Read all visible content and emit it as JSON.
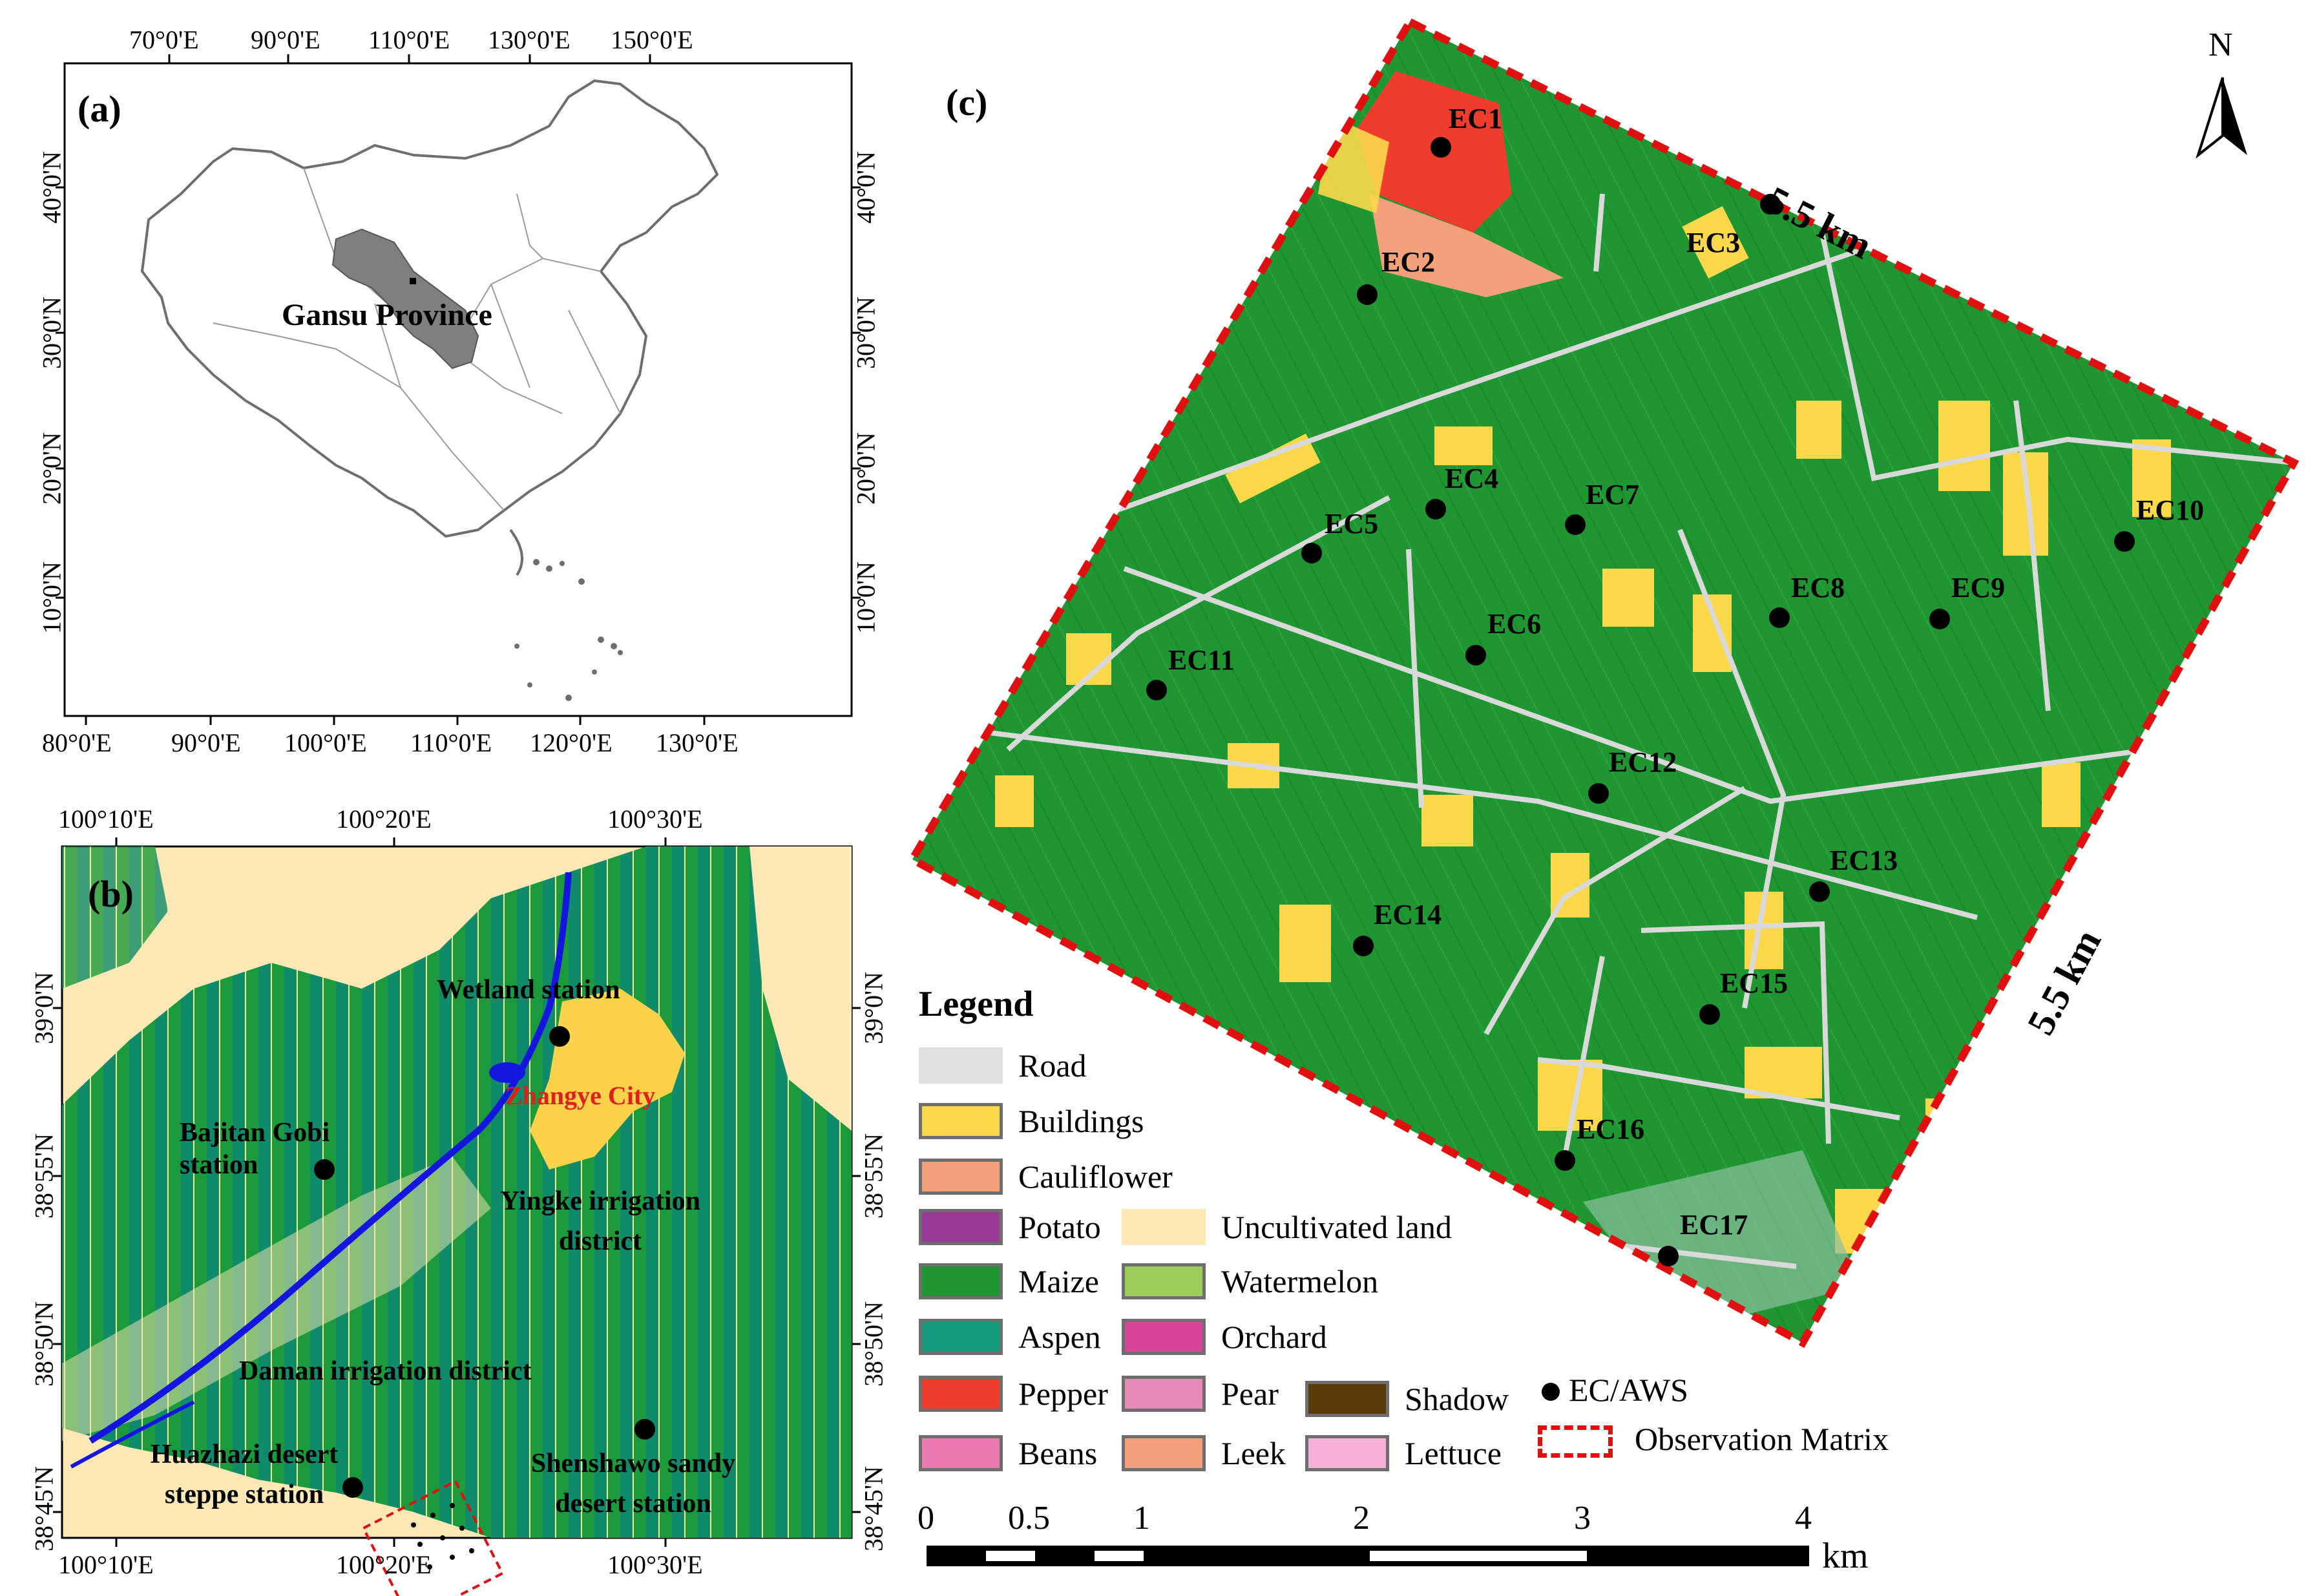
{
  "panel_a": {
    "label": "(a)",
    "top_ticks": [
      "70°0'E",
      "90°0'E",
      "110°0'E",
      "130°0'E",
      "150°0'E"
    ],
    "bottom_ticks": [
      "80°0'E",
      "90°0'E",
      "100°0'E",
      "110°0'E",
      "120°0'E",
      "130°0'E"
    ],
    "left_ticks": [
      "40°0'N",
      "30°0'N",
      "20°0'N",
      "10°0'N"
    ],
    "right_ticks": [
      "40°0'N",
      "30°0'N",
      "20°0'N",
      "10°0'N"
    ],
    "province_label": "Gansu Province",
    "colors": {
      "province": "#7f7f7f",
      "boundary": "#6e6e6e"
    }
  },
  "panel_b": {
    "label": "(b)",
    "top_ticks": [
      "100°10'E",
      "100°20'E",
      "100°30'E"
    ],
    "bottom_ticks": [
      "100°10'E",
      "100°20'E",
      "100°30'E"
    ],
    "left_ticks": [
      "39°0'N",
      "38°55'N",
      "38°50'N",
      "38°45'N"
    ],
    "right_ticks": [
      "39°0'N",
      "38°55'N",
      "38°50'N",
      "38°45'N"
    ],
    "stations": [
      {
        "name": "Wetland station"
      },
      {
        "name": "Bajitan Gobi station"
      },
      {
        "name": "Huazhazi desert steppe station"
      },
      {
        "name": "Shenshawo sandy desert station"
      }
    ],
    "city": "Zhangye City",
    "districts": [
      "Yingke irrigation district",
      "Daman irrigation district"
    ],
    "colors": {
      "desert": "#fbe8b4",
      "maize": "#1a9a3a",
      "aspen": "#0f8a6a",
      "water": "#1515e0",
      "city": "#fcd24a",
      "city_label": "#e02020"
    }
  },
  "panel_c": {
    "label": "(c)",
    "north": "N",
    "side_labels": [
      "5.5 km",
      "5.5 km"
    ],
    "ec_sites": [
      "EC1",
      "EC2",
      "EC3",
      "EC4",
      "EC5",
      "EC6",
      "EC7",
      "EC8",
      "EC9",
      "EC10",
      "EC11",
      "EC12",
      "EC13",
      "EC14",
      "EC15",
      "EC16",
      "EC17"
    ],
    "colors": {
      "maize": "#1f9632",
      "buildings": "#fbd84a",
      "road": "#d9d9d9",
      "pepper": "#f03c2c",
      "cauliflower": "#f4a07a",
      "border": "#e01010"
    }
  },
  "legend": {
    "title": "Legend",
    "items": [
      {
        "label": "Road",
        "color": "#e0e0e0"
      },
      {
        "label": "Buildings",
        "color": "#fbd84a"
      },
      {
        "label": "Cauliflower",
        "color": "#f4a07a"
      },
      {
        "label": "Potato",
        "color": "#9a3a96"
      },
      {
        "label": "Maize",
        "color": "#1f9632"
      },
      {
        "label": "Aspen",
        "color": "#129a7a"
      },
      {
        "label": "Pepper",
        "color": "#f03c2c"
      },
      {
        "label": "Beans",
        "color": "#ea7ab0"
      },
      {
        "label": "Uncultivated land",
        "color": "#fbe8b4"
      },
      {
        "label": "Watermelon",
        "color": "#9ccc5a"
      },
      {
        "label": "Orchard",
        "color": "#d9449a"
      },
      {
        "label": "Pear",
        "color": "#e88ab8"
      },
      {
        "label": "Leek",
        "color": "#f4a07a"
      },
      {
        "label": "Shadow",
        "color": "#5a3a08"
      },
      {
        "label": "Lettuce",
        "color": "#f7b0d8"
      }
    ],
    "ec_label": "EC/AWS",
    "matrix_label": "Observation Matrix"
  },
  "scalebar": {
    "ticks": [
      "0",
      "0.5",
      "1",
      "2",
      "3",
      "4"
    ],
    "unit": "km"
  }
}
